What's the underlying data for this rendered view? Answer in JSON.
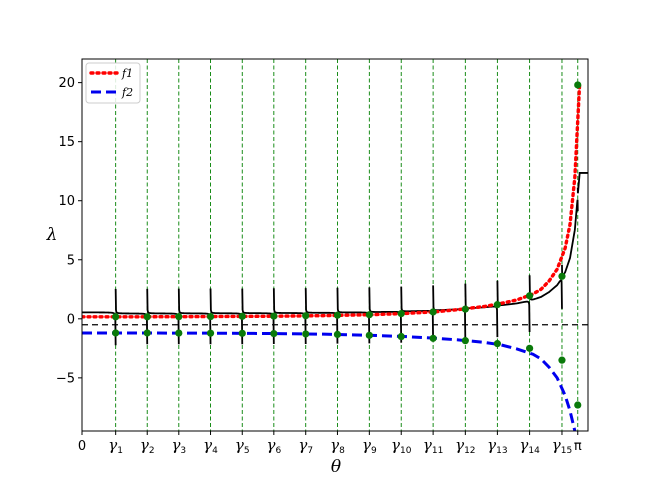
{
  "chart_data": {
    "type": "line",
    "xlabel": "θ",
    "ylabel": "λ",
    "xlim": [
      0,
      3.14159
    ],
    "ylim": [
      -9.5,
      22
    ],
    "y_ticks": [
      -5,
      0,
      5,
      10,
      15,
      20
    ],
    "x_tick_labels": [
      "0",
      "γ1",
      "γ2",
      "γ3",
      "γ4",
      "γ5",
      "γ6",
      "γ7",
      "γ8",
      "γ9",
      "γ10",
      "γ11",
      "γ12",
      "γ13",
      "γ14",
      "γ15",
      "π"
    ],
    "gamma_values": [
      0.209,
      0.405,
      0.601,
      0.798,
      0.995,
      1.191,
      1.389,
      1.586,
      1.784,
      1.982,
      2.18,
      2.38,
      2.579,
      2.779,
      2.98,
      3.078
    ],
    "horizontal_reference": -0.5,
    "grid": false,
    "legend_position": "top-left",
    "series": [
      {
        "name": "f1",
        "style": "dotted",
        "color": "#ff0000",
        "x": [
          0.0,
          0.3,
          0.6,
          0.9,
          1.2,
          1.5,
          1.8,
          2.0,
          2.2,
          2.35,
          2.5,
          2.6,
          2.7,
          2.8,
          2.85,
          2.9,
          2.95,
          3.0,
          3.03,
          3.06,
          3.09
        ],
        "y": [
          0.17,
          0.17,
          0.18,
          0.2,
          0.22,
          0.27,
          0.35,
          0.45,
          0.6,
          0.8,
          1.05,
          1.3,
          1.6,
          2.1,
          2.5,
          3.2,
          4.2,
          6.0,
          8.0,
          12.0,
          20.0
        ]
      },
      {
        "name": "f2",
        "style": "dashed",
        "color": "#0000ee",
        "x": [
          0.0,
          0.3,
          0.6,
          0.9,
          1.2,
          1.5,
          1.8,
          2.0,
          2.2,
          2.35,
          2.5,
          2.6,
          2.7,
          2.8,
          2.85,
          2.9,
          2.95,
          3.0,
          3.03,
          3.06
        ],
        "y": [
          -1.2,
          -1.2,
          -1.21,
          -1.22,
          -1.25,
          -1.3,
          -1.4,
          -1.5,
          -1.65,
          -1.8,
          -2.0,
          -2.2,
          -2.55,
          -3.0,
          -3.4,
          -4.1,
          -5.0,
          -6.5,
          -7.8,
          -9.5
        ]
      }
    ],
    "intersection_points": [
      {
        "x": 0.209,
        "y": 0.17
      },
      {
        "x": 0.209,
        "y": -1.2
      },
      {
        "x": 0.405,
        "y": 0.17
      },
      {
        "x": 0.405,
        "y": -1.2
      },
      {
        "x": 0.601,
        "y": 0.18
      },
      {
        "x": 0.601,
        "y": -1.21
      },
      {
        "x": 0.798,
        "y": 0.19
      },
      {
        "x": 0.798,
        "y": -1.22
      },
      {
        "x": 0.995,
        "y": 0.21
      },
      {
        "x": 0.995,
        "y": -1.23
      },
      {
        "x": 1.191,
        "y": 0.23
      },
      {
        "x": 1.191,
        "y": -1.25
      },
      {
        "x": 1.389,
        "y": 0.26
      },
      {
        "x": 1.389,
        "y": -1.28
      },
      {
        "x": 1.586,
        "y": 0.3
      },
      {
        "x": 1.586,
        "y": -1.32
      },
      {
        "x": 1.784,
        "y": 0.35
      },
      {
        "x": 1.784,
        "y": -1.4
      },
      {
        "x": 1.982,
        "y": 0.44
      },
      {
        "x": 1.982,
        "y": -1.5
      },
      {
        "x": 2.18,
        "y": 0.58
      },
      {
        "x": 2.18,
        "y": -1.65
      },
      {
        "x": 2.38,
        "y": 0.82
      },
      {
        "x": 2.38,
        "y": -1.85
      },
      {
        "x": 2.579,
        "y": 1.2
      },
      {
        "x": 2.579,
        "y": -2.1
      },
      {
        "x": 2.779,
        "y": 1.95
      },
      {
        "x": 2.779,
        "y": -2.5
      },
      {
        "x": 2.98,
        "y": 3.6
      },
      {
        "x": 2.98,
        "y": -3.5
      },
      {
        "x": 3.078,
        "y": 19.8
      },
      {
        "x": 3.078,
        "y": -7.3
      }
    ]
  },
  "colors": {
    "branch": "#000000",
    "gamma_line": "#008000",
    "point": "#0a7a0a",
    "reference": "#000000"
  }
}
